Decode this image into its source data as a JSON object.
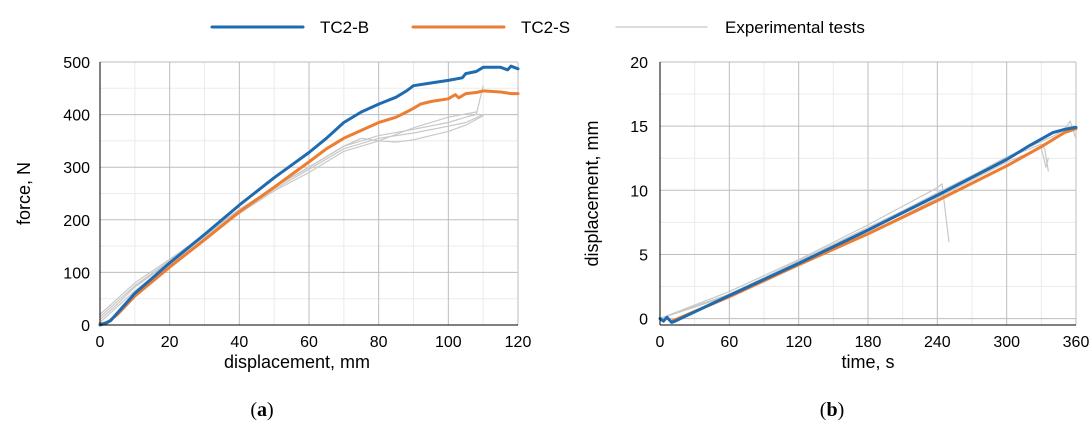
{
  "legend": {
    "items": [
      {
        "label": "TC2-B",
        "color": "#1f6bb0",
        "width": 3
      },
      {
        "label": "TC2-S",
        "color": "#ed7d31",
        "width": 3
      },
      {
        "label": "Experimental tests",
        "color": "#c8c8c8",
        "width": 1.2
      }
    ]
  },
  "chart_data": [
    {
      "type": "line",
      "panel_label": {
        "open": "(",
        "letter": "a",
        "close": ")"
      },
      "xlabel": "displacement, mm",
      "ylabel": "force, N",
      "xlim": [
        0,
        120
      ],
      "ylim": [
        0,
        500
      ],
      "xticks": [
        0,
        20,
        40,
        60,
        80,
        100,
        120
      ],
      "yticks": [
        0,
        100,
        200,
        300,
        400,
        500
      ],
      "grid": true,
      "minor_grid": true,
      "series": [
        {
          "name": "TC2-B",
          "color": "#1f6bb0",
          "x": [
            0,
            1,
            3,
            10,
            20,
            30,
            40,
            50,
            60,
            65,
            70,
            75,
            80,
            85,
            88,
            90,
            95,
            100,
            104,
            105,
            108,
            110,
            115,
            117,
            118,
            120
          ],
          "y": [
            0,
            2,
            8,
            60,
            118,
            172,
            228,
            280,
            328,
            355,
            385,
            405,
            420,
            433,
            445,
            455,
            460,
            465,
            470,
            478,
            482,
            490,
            490,
            485,
            492,
            487
          ]
        },
        {
          "name": "TC2-S",
          "color": "#ed7d31",
          "x": [
            0,
            2,
            5,
            10,
            20,
            30,
            40,
            50,
            60,
            65,
            70,
            75,
            80,
            85,
            88,
            90,
            92,
            95,
            100,
            102,
            103,
            105,
            108,
            110,
            115,
            118,
            120
          ],
          "y": [
            2,
            4,
            20,
            55,
            110,
            162,
            215,
            262,
            310,
            335,
            355,
            370,
            385,
            395,
            405,
            412,
            420,
            425,
            430,
            438,
            432,
            440,
            442,
            445,
            443,
            440,
            440
          ]
        },
        {
          "name": "",
          "color": "#c8c8c8",
          "x": [
            0,
            5,
            10,
            20,
            30,
            40,
            50,
            60,
            70,
            80,
            90,
            100,
            105,
            108,
            110
          ],
          "y": [
            20,
            50,
            80,
            125,
            172,
            220,
            262,
            300,
            340,
            360,
            372,
            385,
            395,
            400,
            455
          ]
        },
        {
          "name": "",
          "color": "#c8c8c8",
          "x": [
            0,
            5,
            10,
            20,
            30,
            40,
            50,
            60,
            70,
            80,
            90,
            100,
            105,
            110
          ],
          "y": [
            10,
            40,
            72,
            120,
            168,
            215,
            258,
            296,
            335,
            355,
            365,
            378,
            385,
            400
          ]
        },
        {
          "name": "",
          "color": "#c8c8c8",
          "x": [
            0,
            5,
            10,
            20,
            30,
            40,
            50,
            60,
            70,
            80,
            90,
            100,
            108
          ],
          "y": [
            5,
            35,
            65,
            115,
            165,
            212,
            255,
            290,
            330,
            350,
            375,
            395,
            405
          ]
        },
        {
          "name": "",
          "color": "#c8c8c8",
          "x": [
            0,
            5,
            10,
            20,
            30,
            40,
            50,
            60,
            70,
            75,
            80,
            85,
            90,
            95,
            100,
            105,
            110
          ],
          "y": [
            15,
            45,
            75,
            122,
            170,
            218,
            262,
            300,
            340,
            355,
            350,
            348,
            352,
            360,
            368,
            380,
            398
          ]
        }
      ]
    },
    {
      "type": "line",
      "panel_label": {
        "open": "(",
        "letter": "b",
        "close": ")"
      },
      "xlabel": "time, s",
      "ylabel": "displacement, mm",
      "xlim": [
        0,
        360
      ],
      "ylim": [
        -0.5,
        20
      ],
      "xticks": [
        0,
        60,
        120,
        180,
        240,
        300,
        360
      ],
      "yticks": [
        0,
        5,
        10,
        15,
        20
      ],
      "grid": true,
      "minor_grid": true,
      "series": [
        {
          "name": "TC2-B",
          "color": "#1f6bb0",
          "x": [
            0,
            3,
            6,
            10,
            13,
            60,
            120,
            180,
            240,
            300,
            320,
            340,
            350,
            360
          ],
          "y": [
            0,
            -0.2,
            0.1,
            -0.3,
            -0.2,
            1.8,
            4.3,
            6.9,
            9.6,
            12.4,
            13.5,
            14.5,
            14.75,
            14.9
          ]
        },
        {
          "name": "TC2-S",
          "color": "#ed7d31",
          "x": [
            10,
            60,
            120,
            180,
            240,
            300,
            330,
            350,
            360
          ],
          "y": [
            -0.2,
            1.7,
            4.2,
            6.6,
            9.2,
            11.9,
            13.4,
            14.5,
            14.8
          ]
        },
        {
          "name": "",
          "color": "#c8c8c8",
          "x": [
            0,
            60,
            120,
            180,
            240,
            244,
            250
          ],
          "y": [
            0,
            2.1,
            4.6,
            7.3,
            10.2,
            10.5,
            6
          ]
        },
        {
          "name": "",
          "color": "#c8c8c8",
          "x": [
            0,
            60,
            120,
            180,
            240,
            300,
            330,
            333,
            336
          ],
          "y": [
            0,
            1.9,
            4.4,
            7.0,
            9.8,
            12.5,
            13.6,
            13.2,
            11.5
          ]
        },
        {
          "name": "",
          "color": "#c8c8c8",
          "x": [
            0,
            60,
            120,
            180,
            240,
            300,
            330,
            334,
            336
          ],
          "y": [
            0,
            1.8,
            4.1,
            6.6,
            9.4,
            12.2,
            13.3,
            11.8,
            12.5
          ]
        },
        {
          "name": "",
          "color": "#c8c8c8",
          "x": [
            0,
            60,
            120,
            180,
            240,
            300,
            340,
            350,
            355,
            360
          ],
          "y": [
            0,
            1.9,
            4.5,
            7.1,
            9.7,
            12.6,
            14.2,
            14.7,
            15.4,
            14.0
          ]
        }
      ]
    }
  ]
}
